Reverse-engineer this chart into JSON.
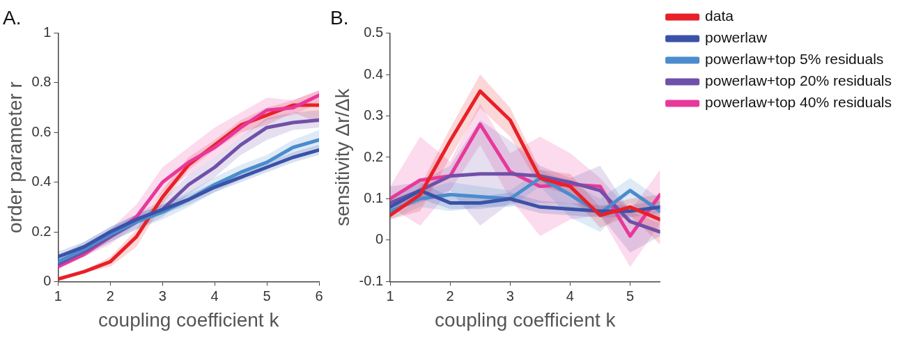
{
  "chart_data": [
    {
      "type": "line",
      "title": "A.",
      "xlabel": "coupling coefficient k",
      "ylabel": "order parameter r",
      "x": [
        1,
        1.5,
        2,
        2.5,
        3,
        3.5,
        4,
        4.5,
        5,
        5.5,
        6
      ],
      "xlim": [
        1,
        6
      ],
      "xticks": [
        1,
        2,
        3,
        4,
        5,
        6
      ],
      "ylim": [
        0,
        1
      ],
      "yticks": [
        0,
        0.2,
        0.4,
        0.6,
        0.8,
        1
      ],
      "grid": false,
      "legend": false,
      "marker": "none",
      "line_style": "solid",
      "series": [
        {
          "color": "#3a52a8",
          "values": [
            0.1,
            0.14,
            0.2,
            0.25,
            0.29,
            0.33,
            0.38,
            0.42,
            0.46,
            0.5,
            0.53
          ],
          "lower": [
            0.08,
            0.12,
            0.18,
            0.23,
            0.27,
            0.31,
            0.36,
            0.4,
            0.44,
            0.48,
            0.51
          ],
          "upper": [
            0.12,
            0.16,
            0.22,
            0.27,
            0.31,
            0.35,
            0.4,
            0.44,
            0.48,
            0.52,
            0.55
          ]
        },
        {
          "color": "#4a8ccc",
          "values": [
            0.08,
            0.13,
            0.19,
            0.24,
            0.28,
            0.33,
            0.39,
            0.44,
            0.48,
            0.54,
            0.57
          ],
          "lower": [
            0.06,
            0.1,
            0.16,
            0.21,
            0.25,
            0.3,
            0.36,
            0.41,
            0.45,
            0.51,
            0.54
          ],
          "upper": [
            0.1,
            0.16,
            0.22,
            0.27,
            0.31,
            0.36,
            0.42,
            0.47,
            0.51,
            0.57,
            0.61
          ]
        },
        {
          "color": "#7050a8",
          "values": [
            0.07,
            0.12,
            0.18,
            0.24,
            0.29,
            0.39,
            0.46,
            0.55,
            0.62,
            0.64,
            0.65
          ],
          "lower": [
            0.06,
            0.11,
            0.16,
            0.21,
            0.26,
            0.35,
            0.42,
            0.51,
            0.57,
            0.61,
            0.62
          ],
          "upper": [
            0.09,
            0.14,
            0.21,
            0.27,
            0.33,
            0.43,
            0.5,
            0.58,
            0.66,
            0.68,
            0.69
          ]
        },
        {
          "color": "#e8389a",
          "values": [
            0.06,
            0.11,
            0.18,
            0.26,
            0.4,
            0.48,
            0.54,
            0.62,
            0.69,
            0.7,
            0.75
          ],
          "lower": [
            0.05,
            0.1,
            0.15,
            0.23,
            0.36,
            0.43,
            0.5,
            0.58,
            0.65,
            0.67,
            0.72
          ],
          "upper": [
            0.08,
            0.13,
            0.21,
            0.31,
            0.46,
            0.54,
            0.62,
            0.68,
            0.74,
            0.73,
            0.77
          ]
        },
        {
          "color": "#e82028",
          "values": [
            0.01,
            0.04,
            0.08,
            0.18,
            0.34,
            0.47,
            0.55,
            0.63,
            0.67,
            0.71,
            0.71
          ],
          "lower": [
            0.01,
            0.035,
            0.06,
            0.14,
            0.31,
            0.45,
            0.53,
            0.6,
            0.63,
            0.68,
            0.64
          ],
          "upper": [
            0.015,
            0.045,
            0.1,
            0.21,
            0.37,
            0.5,
            0.57,
            0.65,
            0.7,
            0.73,
            0.77
          ]
        }
      ]
    },
    {
      "type": "line",
      "title": "B.",
      "xlabel": "coupling coefficient k",
      "ylabel": "sensitivity Δr/Δk",
      "x": [
        1,
        1.5,
        2,
        2.5,
        3,
        3.5,
        4,
        4.5,
        5,
        5.5
      ],
      "xlim": [
        1,
        5.5
      ],
      "xticks": [
        1,
        2,
        3,
        4,
        5
      ],
      "ylim": [
        -0.1,
        0.5
      ],
      "yticks": [
        -0.1,
        0,
        0.1,
        0.2,
        0.3,
        0.4,
        0.5
      ],
      "grid": false,
      "legend": "top right",
      "marker": "none",
      "line_style": "solid",
      "series": [
        {
          "name": "data",
          "color": "#e82028",
          "values": [
            0.06,
            0.11,
            0.24,
            0.36,
            0.29,
            0.15,
            0.13,
            0.06,
            0.08,
            0.05
          ],
          "lower": [
            0.05,
            0.07,
            0.2,
            0.32,
            0.25,
            0.13,
            0.11,
            0.03,
            0.06,
            -0.01
          ],
          "upper": [
            0.07,
            0.13,
            0.27,
            0.4,
            0.32,
            0.17,
            0.16,
            0.08,
            0.1,
            0.11
          ]
        },
        {
          "name": "powerlaw",
          "color": "#3a52a8",
          "values": [
            0.08,
            0.12,
            0.09,
            0.09,
            0.1,
            0.08,
            0.075,
            0.07,
            0.07,
            0.08
          ],
          "lower": [
            0.06,
            0.1,
            0.075,
            0.075,
            0.085,
            0.065,
            0.06,
            0.055,
            0.055,
            0.065
          ],
          "upper": [
            0.1,
            0.14,
            0.105,
            0.105,
            0.115,
            0.095,
            0.09,
            0.085,
            0.085,
            0.095
          ]
        },
        {
          "name": "powerlaw+top 5% residuals",
          "color": "#4a8ccc",
          "values": [
            0.07,
            0.1,
            0.11,
            0.105,
            0.1,
            0.15,
            0.11,
            0.065,
            0.12,
            0.07
          ],
          "lower": [
            0.05,
            0.08,
            0.07,
            0.08,
            0.08,
            0.13,
            0.055,
            0.02,
            0.09,
            0.04
          ],
          "upper": [
            0.09,
            0.12,
            0.14,
            0.13,
            0.12,
            0.17,
            0.14,
            0.1,
            0.15,
            0.1
          ]
        },
        {
          "name": "powerlaw+top 20% residuals",
          "color": "#7050a8",
          "values": [
            0.09,
            0.12,
            0.155,
            0.16,
            0.16,
            0.155,
            0.14,
            0.12,
            0.045,
            0.02
          ],
          "lower": [
            0.07,
            0.09,
            0.12,
            0.035,
            0.09,
            0.09,
            0.09,
            0.06,
            -0.03,
            0.01
          ],
          "upper": [
            0.13,
            0.14,
            0.18,
            0.29,
            0.24,
            0.18,
            0.15,
            0.18,
            0.07,
            0.04
          ]
        },
        {
          "name": "powerlaw+top 40% residuals",
          "color": "#e8389a",
          "values": [
            0.1,
            0.145,
            0.155,
            0.28,
            0.165,
            0.13,
            0.135,
            0.13,
            0.01,
            0.11
          ],
          "lower": [
            0.08,
            0.035,
            0.12,
            0.23,
            0.1,
            0.01,
            0.05,
            0.06,
            -0.065,
            0.04
          ],
          "upper": [
            0.13,
            0.25,
            0.19,
            0.33,
            0.21,
            0.25,
            0.21,
            0.15,
            0.07,
            0.17
          ]
        }
      ]
    }
  ]
}
